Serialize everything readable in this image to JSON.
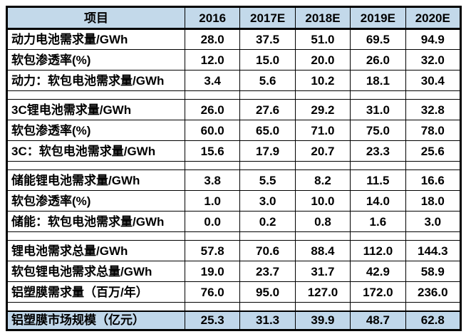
{
  "colors": {
    "header_bg": "#c3d9ea",
    "highlight_bg": "#c0d7ea",
    "border": "#000000",
    "background": "#ffffff",
    "text": "#000000"
  },
  "chart_data": {
    "type": "table",
    "title": "",
    "columns": [
      "项目",
      "2016",
      "2017E",
      "2018E",
      "2019E",
      "2020E"
    ],
    "rows": [
      {
        "label": "动力电池需求量/GWh",
        "values": [
          "28.0",
          "37.5",
          "51.0",
          "69.5",
          "94.9"
        ]
      },
      {
        "label": "软包渗透率(%)",
        "values": [
          "12.0",
          "15.0",
          "20.0",
          "26.0",
          "32.0"
        ]
      },
      {
        "label": "动力：软包电池需求量/GWh",
        "values": [
          "3.4",
          "5.6",
          "10.2",
          "18.1",
          "30.4"
        ]
      },
      {
        "label": "3C锂电池需求量/GWh",
        "values": [
          "26.0",
          "27.6",
          "29.2",
          "31.0",
          "32.8"
        ]
      },
      {
        "label": "软包渗透率(%)",
        "values": [
          "60.0",
          "65.0",
          "71.0",
          "75.0",
          "78.0"
        ]
      },
      {
        "label": "3C：软包电池需求量/GWh",
        "values": [
          "15.6",
          "17.9",
          "20.7",
          "23.3",
          "25.6"
        ]
      },
      {
        "label": "储能锂电池需求量/GWh",
        "values": [
          "3.8",
          "5.5",
          "8.2",
          "11.5",
          "16.6"
        ]
      },
      {
        "label": "软包渗透率(%)",
        "values": [
          "1.0",
          "3.0",
          "10.0",
          "14.0",
          "18.0"
        ]
      },
      {
        "label": "储能：软包电池需求量/GWh",
        "values": [
          "0.0",
          "0.2",
          "0.8",
          "1.6",
          "3.0"
        ]
      },
      {
        "label": "锂电池需求总量/GWh",
        "values": [
          "57.8",
          "70.6",
          "88.4",
          "112.0",
          "144.3"
        ]
      },
      {
        "label": "软包锂电池需求总量/GWh",
        "values": [
          "19.0",
          "23.7",
          "31.7",
          "42.9",
          "58.9"
        ]
      },
      {
        "label": "铝塑膜需求量（百万/年）",
        "values": [
          "76.0",
          "95.0",
          "127.0",
          "172.0",
          "236.0"
        ]
      }
    ],
    "total_row": {
      "label": "铝塑膜市场规模（亿元）",
      "values": [
        "25.3",
        "31.3",
        "39.9",
        "48.7",
        "62.8"
      ]
    },
    "layout_hints": {
      "section_breaks_after_row_index": [
        2,
        5,
        8,
        11
      ],
      "header_highlighted": true,
      "total_row_highlighted": true,
      "grid": "full black grid with thick outer border"
    }
  }
}
